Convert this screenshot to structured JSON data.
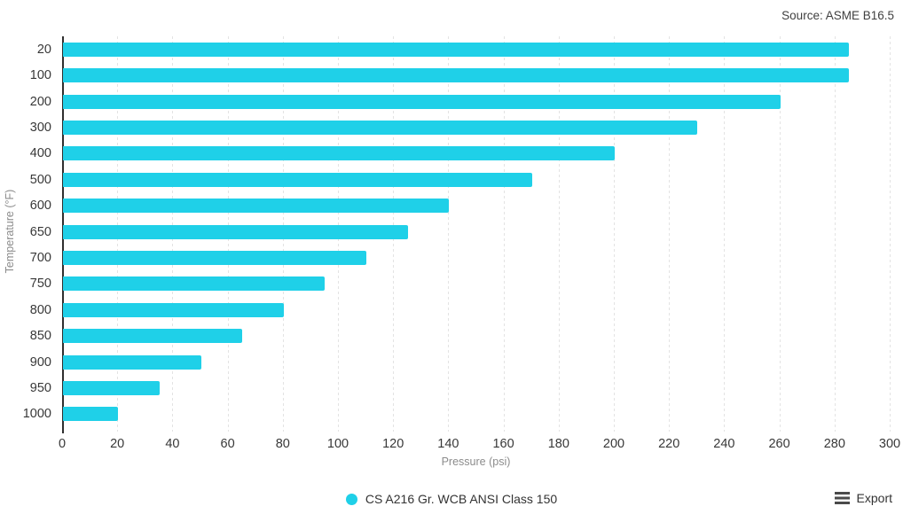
{
  "source_note": "Source: ASME B16.5",
  "legend": {
    "label": "CS A216 Gr. WCB ANSI Class 150"
  },
  "export": {
    "label": "Export"
  },
  "colors": {
    "bar": "#1fd0e8",
    "axis_line": "#2f2f2f",
    "gridline": "#e3e3e3",
    "tick_label": "#383838",
    "axis_title": "#8c8c8c"
  },
  "chart_data": {
    "type": "bar",
    "orientation": "horizontal",
    "title": "",
    "series_name": "CS A216 Gr. WCB ANSI Class 150",
    "categories": [
      "20",
      "100",
      "200",
      "300",
      "400",
      "500",
      "600",
      "650",
      "700",
      "750",
      "800",
      "850",
      "900",
      "950",
      "1000"
    ],
    "values": [
      285,
      285,
      260,
      230,
      200,
      170,
      140,
      125,
      110,
      95,
      80,
      65,
      50,
      35,
      20
    ],
    "xlabel": "Pressure (psi)",
    "ylabel": "Temperature (°F)",
    "xlim": [
      0,
      300
    ],
    "xticks": [
      0,
      20,
      40,
      60,
      80,
      100,
      120,
      140,
      160,
      180,
      200,
      220,
      240,
      260,
      280,
      300
    ],
    "grid": true,
    "grid_style": "dashed-vertical",
    "legend_position": "bottom-center",
    "annotation": "Source: ASME B16.5"
  }
}
